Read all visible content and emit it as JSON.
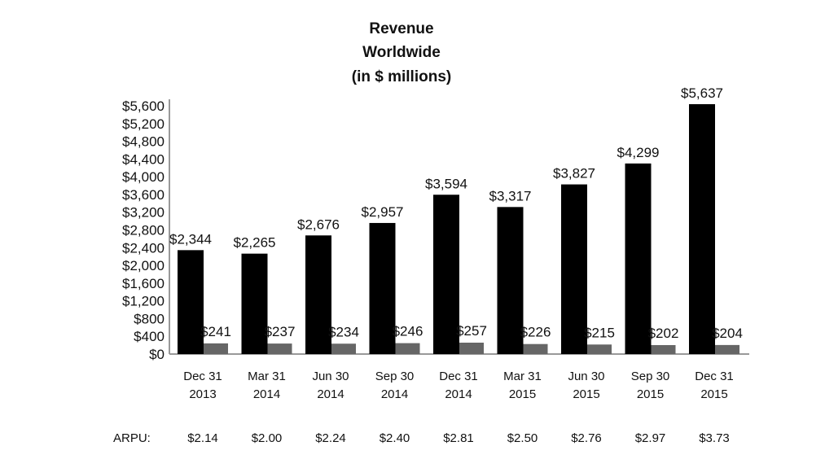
{
  "chart_data": {
    "type": "bar",
    "title_lines": [
      "Revenue",
      "Worldwide",
      "(in $ millions)"
    ],
    "categories": [
      [
        "Dec 31",
        "2013"
      ],
      [
        "Mar 31",
        "2014"
      ],
      [
        "Jun 30",
        "2014"
      ],
      [
        "Sep 30",
        "2014"
      ],
      [
        "Dec 31",
        "2014"
      ],
      [
        "Mar 31",
        "2015"
      ],
      [
        "Jun 30",
        "2015"
      ],
      [
        "Sep 30",
        "2015"
      ],
      [
        "Dec 31",
        "2015"
      ]
    ],
    "series": [
      {
        "color": "#000000",
        "values": [
          2344,
          2265,
          2676,
          2957,
          3594,
          3317,
          3827,
          4299,
          5637
        ],
        "labels": [
          "$2,344",
          "$2,265",
          "$2,676",
          "$2,957",
          "$3,594",
          "$3,317",
          "$3,827",
          "$4,299",
          "$5,637"
        ]
      },
      {
        "color": "#666666",
        "values": [
          241,
          237,
          234,
          246,
          257,
          226,
          215,
          202,
          204
        ],
        "labels": [
          "$241",
          "$237",
          "$234",
          "$246",
          "$257",
          "$226",
          "$215",
          "$202",
          "$204"
        ]
      }
    ],
    "ylim": [
      0,
      5600
    ],
    "yticks": [
      0,
      400,
      800,
      1200,
      1600,
      2000,
      2400,
      2800,
      3200,
      3600,
      4000,
      4400,
      4800,
      5200,
      5600
    ],
    "ytick_labels": [
      "$0",
      "$400",
      "$800",
      "$1,200",
      "$1,600",
      "$2,000",
      "$2,400",
      "$2,800",
      "$3,200",
      "$3,600",
      "$4,000",
      "$4,400",
      "$4,800",
      "$5,200",
      "$5,600"
    ],
    "grid": false,
    "legend": "none",
    "arpu": {
      "label": "ARPU:",
      "values": [
        "$2.14",
        "$2.00",
        "$2.24",
        "$2.40",
        "$2.81",
        "$2.50",
        "$2.76",
        "$2.97",
        "$3.73"
      ]
    }
  }
}
